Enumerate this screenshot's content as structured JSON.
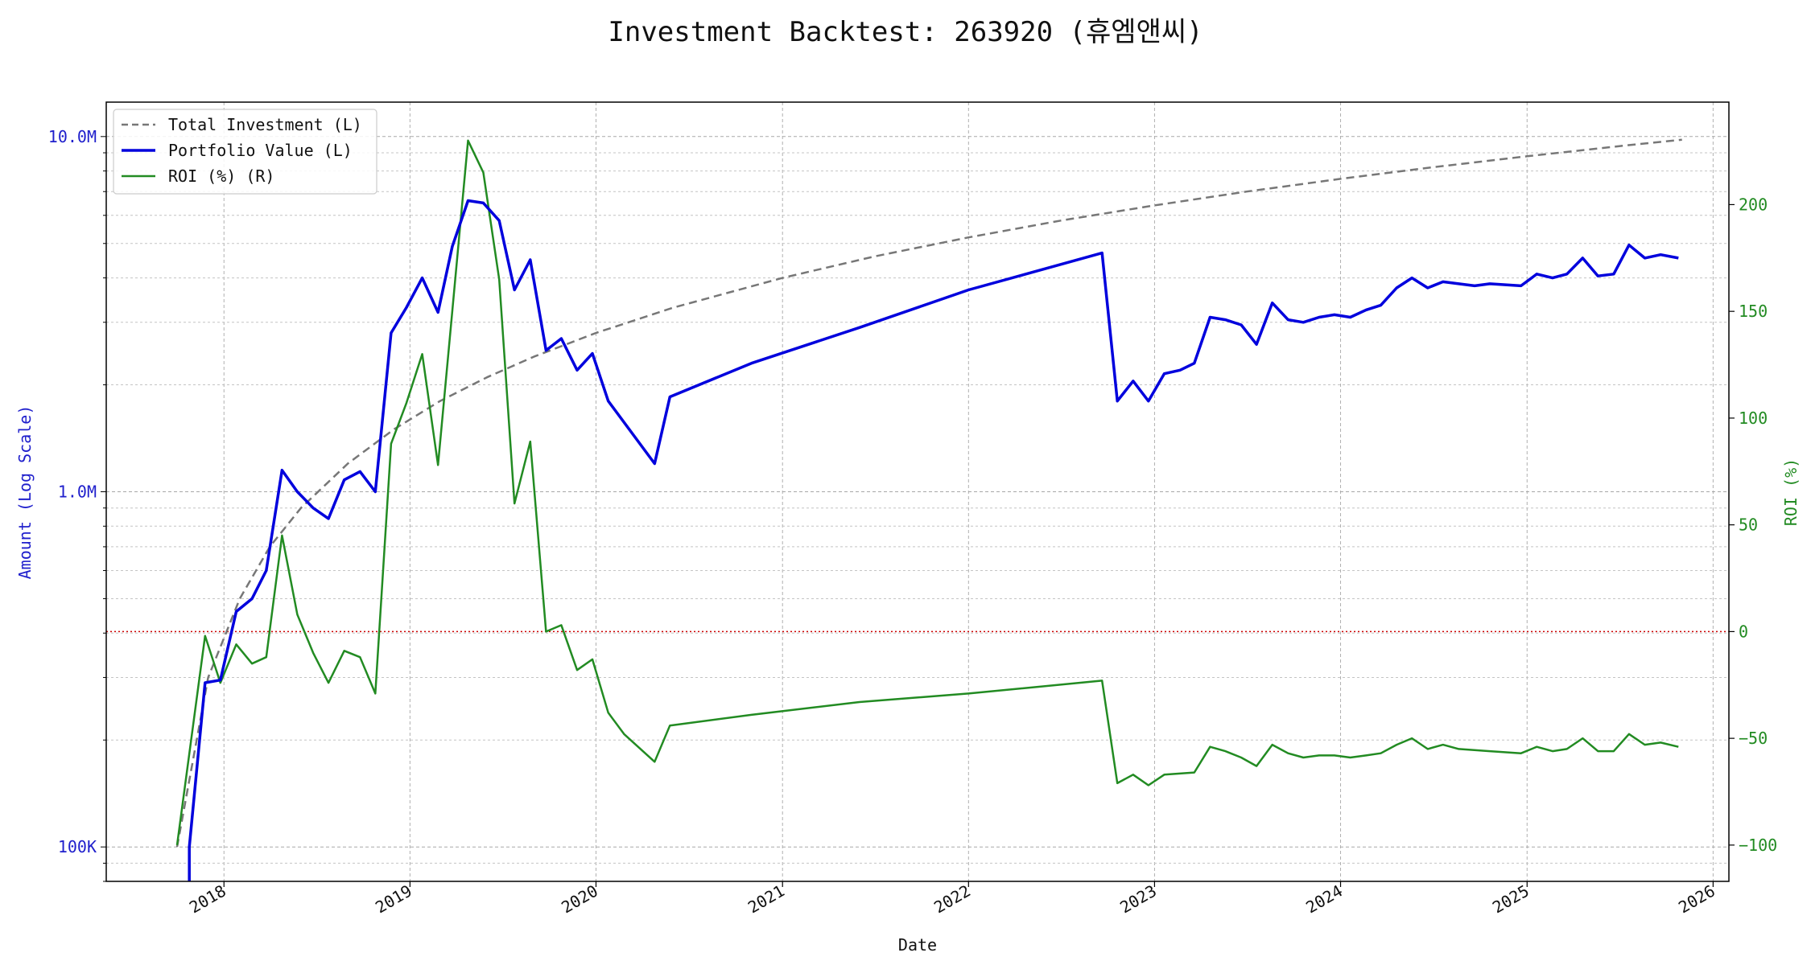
{
  "title": "Investment Backtest: 263920 (휴엠앤씨)",
  "chart_data": {
    "type": "line",
    "title": "Investment Backtest: 263920 (휴엠앤씨)",
    "xlabel": "Date",
    "ylabel_left": "Amount (Log Scale)",
    "ylabel_right": "ROI (%)",
    "y_left_scale": "log",
    "y_left_lim": [
      80000,
      12500000
    ],
    "y_right_lim": [
      -117,
      248
    ],
    "x_lim": [
      "2017-05-15",
      "2026-02-01"
    ],
    "grid": true,
    "legend_position": "top-left",
    "x_ticks": [
      {
        "date": "2018-01-01",
        "label": "2018"
      },
      {
        "date": "2019-01-01",
        "label": "2019"
      },
      {
        "date": "2020-01-01",
        "label": "2020"
      },
      {
        "date": "2021-01-01",
        "label": "2021"
      },
      {
        "date": "2022-01-01",
        "label": "2022"
      },
      {
        "date": "2023-01-01",
        "label": "2023"
      },
      {
        "date": "2024-01-01",
        "label": "2024"
      },
      {
        "date": "2025-01-01",
        "label": "2025"
      },
      {
        "date": "2026-01-01",
        "label": "2026"
      }
    ],
    "y_left_ticks": [
      {
        "value": 100000,
        "label": "100K"
      },
      {
        "value": 1000000,
        "label": "1.0M"
      },
      {
        "value": 10000000,
        "label": "10.0M"
      }
    ],
    "y_right_ticks": [
      {
        "value": -100,
        "label": "−100"
      },
      {
        "value": -50,
        "label": "−50"
      },
      {
        "value": 0,
        "label": "0"
      },
      {
        "value": 50,
        "label": "50"
      },
      {
        "value": 100,
        "label": "100"
      },
      {
        "value": 150,
        "label": "150"
      },
      {
        "value": 200,
        "label": "200"
      }
    ],
    "reference_line": {
      "axis": "right",
      "value": 0,
      "color": "#cc0000"
    },
    "series": [
      {
        "name": "Total Investment (L)",
        "axis": "left",
        "color": "#777777",
        "style": "dashed",
        "points": [
          [
            "2017-10-01",
            100000
          ],
          [
            "2017-12-01",
            300000
          ],
          [
            "2018-02-01",
            500000
          ],
          [
            "2018-04-01",
            700000
          ],
          [
            "2018-06-01",
            900000
          ],
          [
            "2018-09-01",
            1200000
          ],
          [
            "2018-12-01",
            1500000
          ],
          [
            "2019-03-01",
            1800000
          ],
          [
            "2019-06-01",
            2100000
          ],
          [
            "2019-09-01",
            2400000
          ],
          [
            "2020-01-01",
            2800000
          ],
          [
            "2020-06-01",
            3300000
          ],
          [
            "2021-01-01",
            4000000
          ],
          [
            "2021-07-01",
            4600000
          ],
          [
            "2022-01-01",
            5200000
          ],
          [
            "2022-07-01",
            5800000
          ],
          [
            "2023-01-01",
            6400000
          ],
          [
            "2023-07-01",
            7000000
          ],
          [
            "2024-01-01",
            7600000
          ],
          [
            "2024-07-01",
            8200000
          ],
          [
            "2025-01-01",
            8800000
          ],
          [
            "2025-07-01",
            9400000
          ],
          [
            "2025-11-01",
            9800000
          ]
        ]
      },
      {
        "name": "Portfolio Value (L)",
        "axis": "left",
        "color": "#0000dd",
        "style": "solid",
        "points": [
          [
            "2017-10-25",
            75000
          ],
          [
            "2017-10-25",
            100000
          ],
          [
            "2017-11-25",
            290000
          ],
          [
            "2017-12-25",
            295000
          ],
          [
            "2018-01-25",
            460000
          ],
          [
            "2018-02-25",
            500000
          ],
          [
            "2018-03-25",
            600000
          ],
          [
            "2018-04-25",
            1150000
          ],
          [
            "2018-05-25",
            1000000
          ],
          [
            "2018-06-25",
            900000
          ],
          [
            "2018-07-25",
            840000
          ],
          [
            "2018-08-25",
            1080000
          ],
          [
            "2018-09-25",
            1140000
          ],
          [
            "2018-10-25",
            1000000
          ],
          [
            "2018-11-25",
            2800000
          ],
          [
            "2018-12-25",
            3300000
          ],
          [
            "2019-01-25",
            4000000
          ],
          [
            "2019-02-25",
            3200000
          ],
          [
            "2019-03-25",
            4900000
          ],
          [
            "2019-04-25",
            6600000
          ],
          [
            "2019-05-25",
            6500000
          ],
          [
            "2019-06-25",
            5800000
          ],
          [
            "2019-07-25",
            3700000
          ],
          [
            "2019-08-25",
            4500000
          ],
          [
            "2019-09-25",
            2500000
          ],
          [
            "2019-10-25",
            2700000
          ],
          [
            "2019-11-25",
            2200000
          ],
          [
            "2019-12-25",
            2450000
          ],
          [
            "2020-01-25",
            1800000
          ],
          [
            "2020-04-25",
            1200000
          ],
          [
            "2020-05-25",
            1850000
          ],
          [
            "2020-11-01",
            2300000
          ],
          [
            "2021-06-01",
            2900000
          ],
          [
            "2022-01-01",
            3700000
          ],
          [
            "2022-09-20",
            4700000
          ],
          [
            "2022-10-20",
            1800000
          ],
          [
            "2022-11-20",
            2050000
          ],
          [
            "2022-12-20",
            1800000
          ],
          [
            "2023-01-20",
            2150000
          ],
          [
            "2023-02-20",
            2200000
          ],
          [
            "2023-03-20",
            2300000
          ],
          [
            "2023-04-20",
            3100000
          ],
          [
            "2023-05-20",
            3050000
          ],
          [
            "2023-06-20",
            2950000
          ],
          [
            "2023-07-20",
            2600000
          ],
          [
            "2023-08-20",
            3400000
          ],
          [
            "2023-09-20",
            3050000
          ],
          [
            "2023-10-20",
            3000000
          ],
          [
            "2023-11-20",
            3100000
          ],
          [
            "2023-12-20",
            3150000
          ],
          [
            "2024-01-20",
            3100000
          ],
          [
            "2024-02-20",
            3250000
          ],
          [
            "2024-03-20",
            3350000
          ],
          [
            "2024-04-20",
            3750000
          ],
          [
            "2024-05-20",
            4000000
          ],
          [
            "2024-06-20",
            3750000
          ],
          [
            "2024-07-20",
            3900000
          ],
          [
            "2024-08-20",
            3850000
          ],
          [
            "2024-09-20",
            3800000
          ],
          [
            "2024-10-20",
            3850000
          ],
          [
            "2024-12-20",
            3800000
          ],
          [
            "2025-01-20",
            4100000
          ],
          [
            "2025-02-20",
            4000000
          ],
          [
            "2025-03-20",
            4100000
          ],
          [
            "2025-04-20",
            4550000
          ],
          [
            "2025-05-20",
            4050000
          ],
          [
            "2025-06-20",
            4100000
          ],
          [
            "2025-07-20",
            4950000
          ],
          [
            "2025-08-20",
            4550000
          ],
          [
            "2025-09-20",
            4650000
          ],
          [
            "2025-10-25",
            4550000
          ]
        ]
      },
      {
        "name": "ROI (%) (R)",
        "axis": "right",
        "color": "#228b22",
        "style": "solid",
        "points": [
          [
            "2017-10-01",
            -100
          ],
          [
            "2017-11-25",
            -2
          ],
          [
            "2017-12-25",
            -24
          ],
          [
            "2018-01-25",
            -6
          ],
          [
            "2018-02-25",
            -15
          ],
          [
            "2018-03-25",
            -12
          ],
          [
            "2018-04-25",
            45
          ],
          [
            "2018-05-25",
            8
          ],
          [
            "2018-06-25",
            -10
          ],
          [
            "2018-07-25",
            -24
          ],
          [
            "2018-08-25",
            -9
          ],
          [
            "2018-09-25",
            -12
          ],
          [
            "2018-10-25",
            -29
          ],
          [
            "2018-11-25",
            88
          ],
          [
            "2018-12-25",
            107
          ],
          [
            "2019-01-25",
            130
          ],
          [
            "2019-02-25",
            78
          ],
          [
            "2019-03-25",
            150
          ],
          [
            "2019-04-25",
            230
          ],
          [
            "2019-05-25",
            215
          ],
          [
            "2019-06-25",
            165
          ],
          [
            "2019-07-25",
            60
          ],
          [
            "2019-08-25",
            89
          ],
          [
            "2019-09-25",
            0
          ],
          [
            "2019-10-25",
            3
          ],
          [
            "2019-11-25",
            -18
          ],
          [
            "2019-12-25",
            -13
          ],
          [
            "2020-01-25",
            -38
          ],
          [
            "2020-02-25",
            -48
          ],
          [
            "2020-04-25",
            -61
          ],
          [
            "2020-05-25",
            -44
          ],
          [
            "2020-11-01",
            -39
          ],
          [
            "2021-06-01",
            -33
          ],
          [
            "2022-01-01",
            -29
          ],
          [
            "2022-09-20",
            -23
          ],
          [
            "2022-10-20",
            -71
          ],
          [
            "2022-11-20",
            -67
          ],
          [
            "2022-12-20",
            -72
          ],
          [
            "2023-01-20",
            -67
          ],
          [
            "2023-03-20",
            -66
          ],
          [
            "2023-04-20",
            -54
          ],
          [
            "2023-05-20",
            -56
          ],
          [
            "2023-06-20",
            -59
          ],
          [
            "2023-07-20",
            -63
          ],
          [
            "2023-08-20",
            -53
          ],
          [
            "2023-09-20",
            -57
          ],
          [
            "2023-10-20",
            -59
          ],
          [
            "2023-11-20",
            -58
          ],
          [
            "2023-12-20",
            -58
          ],
          [
            "2024-01-20",
            -59
          ],
          [
            "2024-02-20",
            -58
          ],
          [
            "2024-03-20",
            -57
          ],
          [
            "2024-04-20",
            -53
          ],
          [
            "2024-05-20",
            -50
          ],
          [
            "2024-06-20",
            -55
          ],
          [
            "2024-07-20",
            -53
          ],
          [
            "2024-08-20",
            -55
          ],
          [
            "2024-10-20",
            -56
          ],
          [
            "2024-12-20",
            -57
          ],
          [
            "2025-01-20",
            -54
          ],
          [
            "2025-02-20",
            -56
          ],
          [
            "2025-03-20",
            -55
          ],
          [
            "2025-04-20",
            -50
          ],
          [
            "2025-05-20",
            -56
          ],
          [
            "2025-06-20",
            -56
          ],
          [
            "2025-07-20",
            -48
          ],
          [
            "2025-08-20",
            -53
          ],
          [
            "2025-09-20",
            -52
          ],
          [
            "2025-10-25",
            -54
          ]
        ]
      }
    ]
  }
}
